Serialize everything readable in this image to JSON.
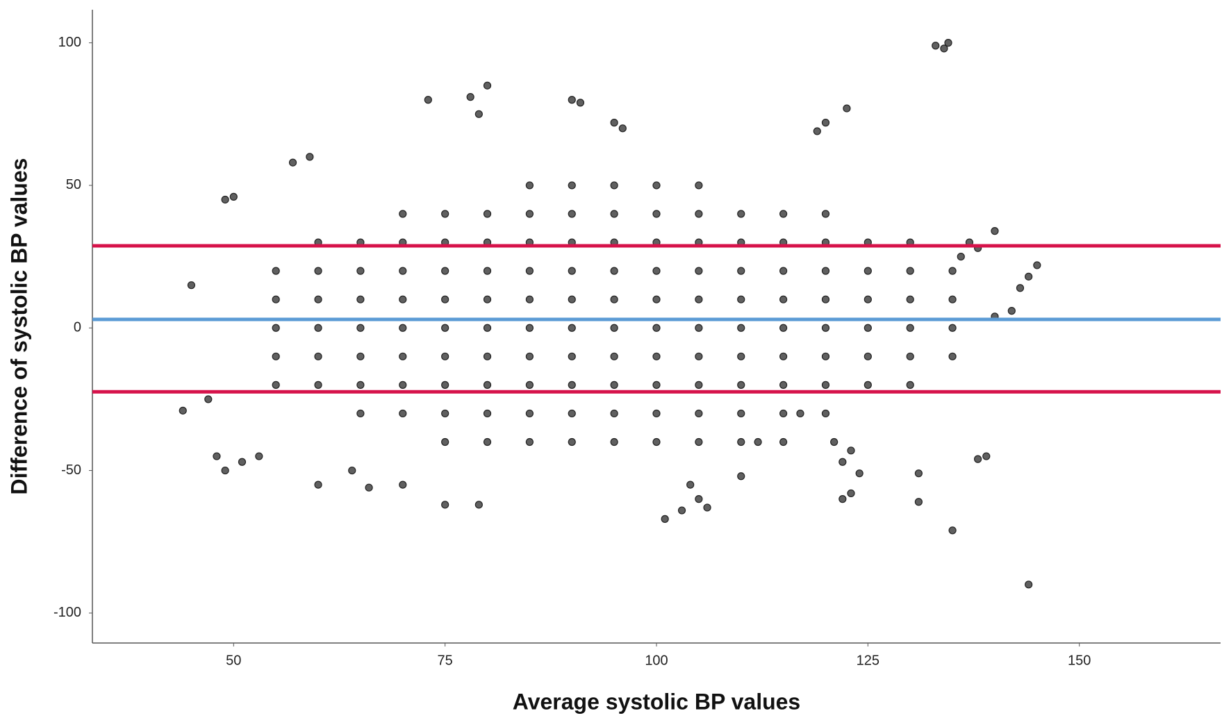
{
  "chart_data": {
    "type": "scatter",
    "x_label": "Average systolic BP values",
    "y_label": "Difference of systolic BP values",
    "xlim": [
      33.3,
      166.7
    ],
    "xticks": [
      50,
      75,
      100,
      125,
      150
    ],
    "ylim": [
      -110.5,
      111.6
    ],
    "yticks": [
      -100,
      -50,
      0,
      50,
      100
    ],
    "grid": false,
    "hlines": [
      {
        "value": 3.0,
        "color": "#5b9bd5"
      },
      {
        "value": 28.8,
        "color": "#d6124a"
      },
      {
        "value": -22.4,
        "color": "#d6124a"
      }
    ],
    "series": [
      {
        "color": "#444444",
        "x": [
          55,
          55,
          55,
          55,
          55,
          60,
          60,
          60,
          60,
          60,
          60,
          65,
          65,
          65,
          65,
          65,
          65,
          65,
          70,
          70,
          70,
          70,
          70,
          70,
          70,
          70,
          75,
          75,
          75,
          75,
          75,
          75,
          75,
          75,
          75,
          80,
          80,
          80,
          80,
          80,
          80,
          80,
          80,
          80,
          85,
          85,
          85,
          85,
          85,
          85,
          85,
          85,
          85,
          85,
          90,
          90,
          90,
          90,
          90,
          90,
          90,
          90,
          90,
          90,
          95,
          95,
          95,
          95,
          95,
          95,
          95,
          95,
          95,
          95,
          100,
          100,
          100,
          100,
          100,
          100,
          100,
          100,
          100,
          100,
          105,
          105,
          105,
          105,
          105,
          105,
          105,
          105,
          105,
          105,
          110,
          110,
          110,
          110,
          110,
          110,
          110,
          110,
          110,
          115,
          115,
          115,
          115,
          115,
          115,
          115,
          115,
          115,
          120,
          120,
          120,
          120,
          120,
          120,
          120,
          120,
          125,
          125,
          125,
          125,
          125,
          125,
          130,
          130,
          130,
          130,
          130,
          130,
          135,
          135,
          135,
          135,
          133,
          134,
          134.5,
          135,
          144,
          80,
          78,
          73,
          90,
          91,
          122.5,
          120,
          119,
          95,
          96,
          79,
          59,
          57,
          49,
          50,
          45,
          44,
          47,
          48,
          49,
          51,
          53,
          121,
          122,
          123,
          122,
          123,
          124,
          131,
          131,
          138,
          139,
          145,
          144,
          143,
          142,
          140,
          140,
          138,
          137,
          136,
          101,
          103,
          104,
          105,
          106,
          110,
          112,
          117,
          79,
          75,
          70,
          66,
          64,
          60
        ],
        "values": [
          -20,
          -10,
          0,
          10,
          20,
          -20,
          -10,
          0,
          10,
          20,
          30,
          -30,
          -20,
          -10,
          0,
          10,
          20,
          30,
          -30,
          -20,
          -10,
          0,
          10,
          20,
          30,
          40,
          -40,
          -30,
          -20,
          -10,
          0,
          10,
          20,
          30,
          40,
          -40,
          -30,
          -20,
          -10,
          0,
          10,
          20,
          30,
          40,
          -40,
          -30,
          -20,
          -10,
          0,
          10,
          20,
          30,
          40,
          50,
          -40,
          -30,
          -20,
          -10,
          0,
          10,
          20,
          30,
          40,
          50,
          -40,
          -30,
          -20,
          -10,
          0,
          10,
          20,
          30,
          40,
          50,
          -40,
          -30,
          -20,
          -10,
          0,
          10,
          20,
          30,
          40,
          50,
          -40,
          -30,
          -20,
          -10,
          0,
          10,
          20,
          30,
          40,
          50,
          -40,
          -30,
          -20,
          -10,
          0,
          10,
          20,
          30,
          40,
          -40,
          -30,
          -20,
          -10,
          0,
          10,
          20,
          30,
          40,
          -30,
          -20,
          -10,
          0,
          10,
          20,
          30,
          40,
          -20,
          -10,
          0,
          10,
          20,
          30,
          -20,
          -10,
          0,
          10,
          20,
          30,
          -10,
          0,
          10,
          20,
          99,
          98,
          100,
          -71,
          -90,
          85,
          81,
          80,
          80,
          79,
          77,
          72,
          69,
          72,
          70,
          75,
          60,
          58,
          45,
          46,
          15,
          -29,
          -25,
          -45,
          -50,
          -47,
          -45,
          -40,
          -47,
          -43,
          -60,
          -58,
          -51,
          -51,
          -61,
          -46,
          -45,
          22,
          18,
          14,
          6,
          4,
          34,
          28,
          30,
          25,
          -67,
          -64,
          -55,
          -60,
          -63,
          -52,
          -40,
          -30,
          -62,
          -62,
          -55,
          -56,
          -50,
          -55
        ]
      }
    ]
  }
}
